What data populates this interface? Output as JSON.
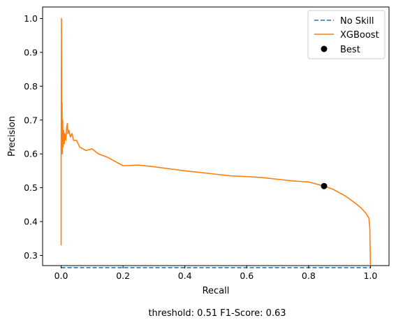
{
  "chart_data": {
    "type": "line",
    "xlabel": "Recall",
    "ylabel": "Precision",
    "xlim": [
      -0.06,
      1.06
    ],
    "ylim": [
      0.27,
      1.034
    ],
    "x_ticks": [
      "0.0",
      "0.2",
      "0.4",
      "0.6",
      "0.8",
      "1.0"
    ],
    "y_ticks": [
      "0.3",
      "0.4",
      "0.5",
      "0.6",
      "0.7",
      "0.8",
      "0.9",
      "1.0"
    ],
    "x_tick_values": [
      0.0,
      0.2,
      0.4,
      0.6,
      0.8,
      1.0
    ],
    "y_tick_values": [
      0.3,
      0.4,
      0.5,
      0.6,
      0.7,
      0.8,
      0.9,
      1.0
    ],
    "legend_position": "top-right",
    "series": [
      {
        "name": "No Skill",
        "style": "dashed",
        "color": "#1f77b4",
        "x": [
          0,
          1
        ],
        "y": [
          0.264,
          0.264
        ]
      },
      {
        "name": "XGBoost",
        "style": "solid",
        "color": "#ff7f0e",
        "x": [
          0.0,
          0.0,
          0.001,
          0.002,
          0.003,
          0.004,
          0.005,
          0.006,
          0.008,
          0.01,
          0.012,
          0.015,
          0.018,
          0.02,
          0.022,
          0.025,
          0.03,
          0.035,
          0.04,
          0.05,
          0.06,
          0.07,
          0.08,
          0.1,
          0.12,
          0.15,
          0.2,
          0.25,
          0.3,
          0.35,
          0.4,
          0.45,
          0.5,
          0.55,
          0.6,
          0.65,
          0.7,
          0.75,
          0.8,
          0.85,
          0.88,
          0.9,
          0.92,
          0.95,
          0.97,
          0.985,
          0.995,
          0.998,
          1.0
        ],
        "y": [
          0.33,
          0.6,
          1.0,
          0.6,
          0.75,
          0.6,
          0.7,
          0.62,
          0.67,
          0.63,
          0.66,
          0.64,
          0.68,
          0.69,
          0.66,
          0.67,
          0.65,
          0.66,
          0.64,
          0.64,
          0.62,
          0.615,
          0.61,
          0.615,
          0.6,
          0.59,
          0.565,
          0.567,
          0.562,
          0.556,
          0.55,
          0.545,
          0.54,
          0.535,
          0.533,
          0.53,
          0.525,
          0.52,
          0.517,
          0.505,
          0.495,
          0.485,
          0.475,
          0.455,
          0.44,
          0.425,
          0.41,
          0.38,
          0.264
        ]
      },
      {
        "name": "Best",
        "style": "marker",
        "color": "#000000",
        "x": [
          0.85
        ],
        "y": [
          0.505
        ]
      }
    ],
    "annotation": "threshold: 0.51  F1-Score: 0.63"
  }
}
